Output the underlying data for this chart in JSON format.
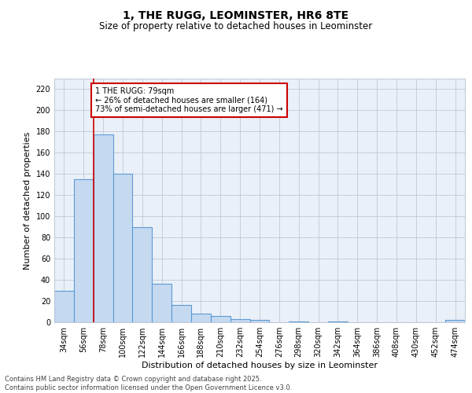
{
  "title": "1, THE RUGG, LEOMINSTER, HR6 8TE",
  "subtitle": "Size of property relative to detached houses in Leominster",
  "xlabel": "Distribution of detached houses by size in Leominster",
  "ylabel": "Number of detached properties",
  "categories": [
    "34sqm",
    "56sqm",
    "78sqm",
    "100sqm",
    "122sqm",
    "144sqm",
    "166sqm",
    "188sqm",
    "210sqm",
    "232sqm",
    "254sqm",
    "276sqm",
    "298sqm",
    "320sqm",
    "342sqm",
    "364sqm",
    "386sqm",
    "408sqm",
    "430sqm",
    "452sqm",
    "474sqm"
  ],
  "values": [
    30,
    135,
    177,
    140,
    90,
    36,
    16,
    8,
    6,
    3,
    2,
    0,
    1,
    0,
    1,
    0,
    0,
    0,
    0,
    0,
    2
  ],
  "bar_color": "#c5d9f0",
  "bar_edge_color": "#5b9bd5",
  "grid_color": "#c0c8d8",
  "background_color": "#eaf0f8",
  "vline_x": 1.5,
  "vline_color": "#cc0000",
  "annotation_text": "1 THE RUGG: 79sqm\n← 26% of detached houses are smaller (164)\n73% of semi-detached houses are larger (471) →",
  "annotation_box_color": "#cc0000",
  "ylim": [
    0,
    230
  ],
  "yticks": [
    0,
    20,
    40,
    60,
    80,
    100,
    120,
    140,
    160,
    180,
    200,
    220
  ],
  "footer_line1": "Contains HM Land Registry data © Crown copyright and database right 2025.",
  "footer_line2": "Contains public sector information licensed under the Open Government Licence v3.0.",
  "title_fontsize": 10,
  "subtitle_fontsize": 8.5,
  "xlabel_fontsize": 8,
  "ylabel_fontsize": 8,
  "tick_fontsize": 7,
  "footer_fontsize": 6,
  "annotation_fontsize": 7
}
